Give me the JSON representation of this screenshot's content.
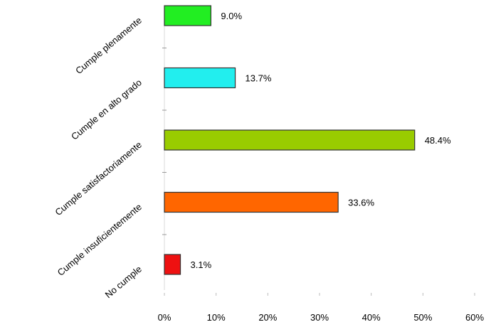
{
  "chart_data": {
    "type": "bar",
    "orientation": "horizontal",
    "categories": [
      "Cumple plenamente",
      "Cumple en alto grado",
      "Cumple satisfactoriamente",
      "Cumple insuficientemente",
      "No cumple"
    ],
    "values": [
      9.0,
      13.7,
      48.4,
      33.6,
      3.1
    ],
    "value_labels": [
      "9.0%",
      "13.7%",
      "48.4%",
      "33.6%",
      "3.1%"
    ],
    "colors": [
      "#22ee22",
      "#22eeee",
      "#99cc00",
      "#ff6600",
      "#ee1111"
    ],
    "xticks": [
      "0%",
      "10%",
      "20%",
      "30%",
      "40%",
      "50%",
      "60%"
    ],
    "xlim": [
      0,
      60
    ],
    "title": "",
    "xlabel": "",
    "ylabel": "",
    "grid": false,
    "legend": false
  }
}
